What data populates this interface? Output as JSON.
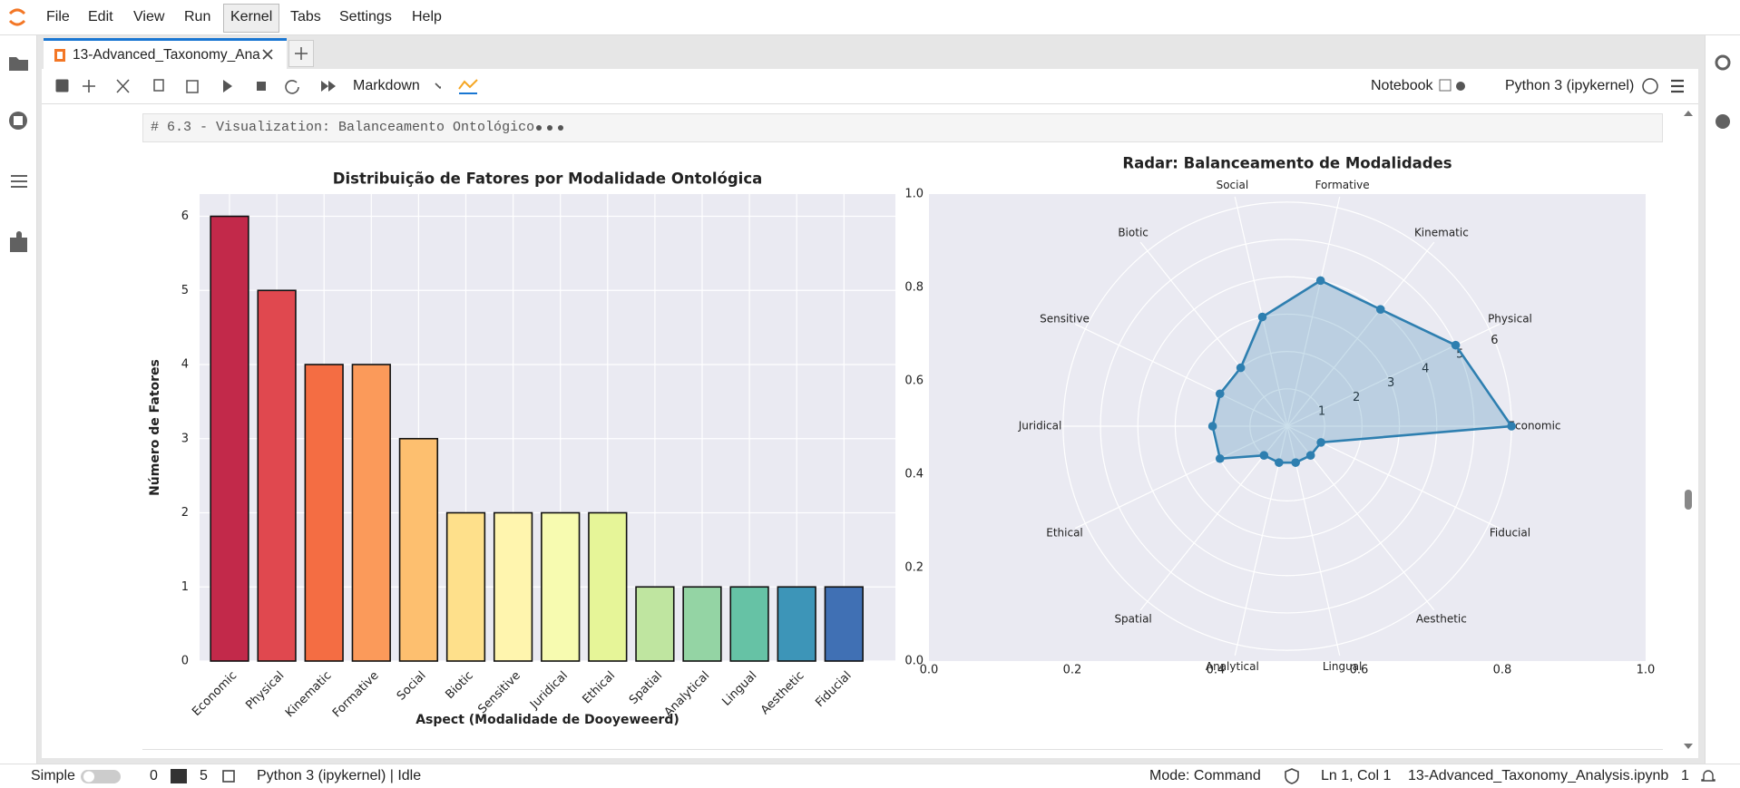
{
  "menu": [
    "File",
    "Edit",
    "View",
    "Run",
    "Kernel",
    "Tabs",
    "Settings",
    "Help"
  ],
  "tab": {
    "title": "13-Advanced_Taxonomy_Ana"
  },
  "toolbar": {
    "cell_type": "Markdown",
    "notebook": "Notebook",
    "kernel": "Python 3 (ipykernel)"
  },
  "cell": {
    "source": "# 6.3 - Visualization: Balanceamento Ontológico"
  },
  "status": {
    "mode_label": "Simple",
    "terminals": 0,
    "kernels": 5,
    "kernel_status": "Python 3 (ipykernel) | Idle",
    "mode": "Mode: Command",
    "position": "Ln 1, Col 1",
    "file": "13-Advanced_Taxonomy_Analysis.ipynb",
    "notifications": 1
  },
  "chart_data": [
    {
      "type": "bar",
      "title": "Distribuição de Fatores por Modalidade Ontológica",
      "xlabel": "Aspect (Modalidade de Dooyeweerd)",
      "ylabel": "Número de Fatores",
      "categories": [
        "Economic",
        "Physical",
        "Kinematic",
        "Formative",
        "Social",
        "Biotic",
        "Sensitive",
        "Juridical",
        "Ethical",
        "Spatial",
        "Analytical",
        "Lingual",
        "Aesthetic",
        "Fiducial"
      ],
      "values": [
        6,
        5,
        4,
        4,
        3,
        2,
        2,
        2,
        2,
        1,
        1,
        1,
        1,
        1
      ],
      "colors": [
        "#c2294a",
        "#e0484f",
        "#f46d43",
        "#fb9a5a",
        "#fdbf6f",
        "#fee08b",
        "#fff5ae",
        "#f7fbb0",
        "#e6f598",
        "#bfe5a0",
        "#94d4a4",
        "#66c2a5",
        "#3d95b8",
        "#4070b4"
      ],
      "ylim": [
        0,
        6.3
      ],
      "yticks": [
        0,
        1,
        2,
        3,
        4,
        5,
        6
      ],
      "grid": true
    },
    {
      "type": "radar",
      "title": "Radar: Balanceamento de Modalidades",
      "categories": [
        "Economic",
        "Physical",
        "Kinematic",
        "Formative",
        "Social",
        "Biotic",
        "Sensitive",
        "Juridical",
        "Ethical",
        "Spatial",
        "Analytical",
        "Lingual",
        "Aesthetic",
        "Fiducial"
      ],
      "values": [
        6,
        5,
        4,
        4,
        3,
        2,
        2,
        2,
        2,
        1,
        1,
        1,
        1,
        1
      ],
      "color": "#2e7fb0",
      "rlim": [
        0,
        6.3
      ],
      "rticks": [
        1,
        2,
        3,
        4,
        5,
        6
      ],
      "xlim": [
        0,
        1
      ],
      "xticks": [
        {
          "value": 0,
          "label": "0.0"
        },
        {
          "value": 0.2,
          "label": "0.2"
        },
        {
          "value": 0.4,
          "label": "0.4"
        },
        {
          "value": 0.6,
          "label": "0.6"
        },
        {
          "value": 0.8,
          "label": "0.8"
        },
        {
          "value": 1,
          "label": "1.0"
        }
      ],
      "ylim": [
        0,
        1
      ],
      "yticks": [
        {
          "value": 0,
          "label": "0.0"
        },
        {
          "value": 0.2,
          "label": "0.2"
        },
        {
          "value": 0.4,
          "label": "0.4"
        },
        {
          "value": 0.6,
          "label": "0.6"
        },
        {
          "value": 0.8,
          "label": "0.8"
        },
        {
          "value": 1,
          "label": "1.0"
        }
      ]
    }
  ]
}
